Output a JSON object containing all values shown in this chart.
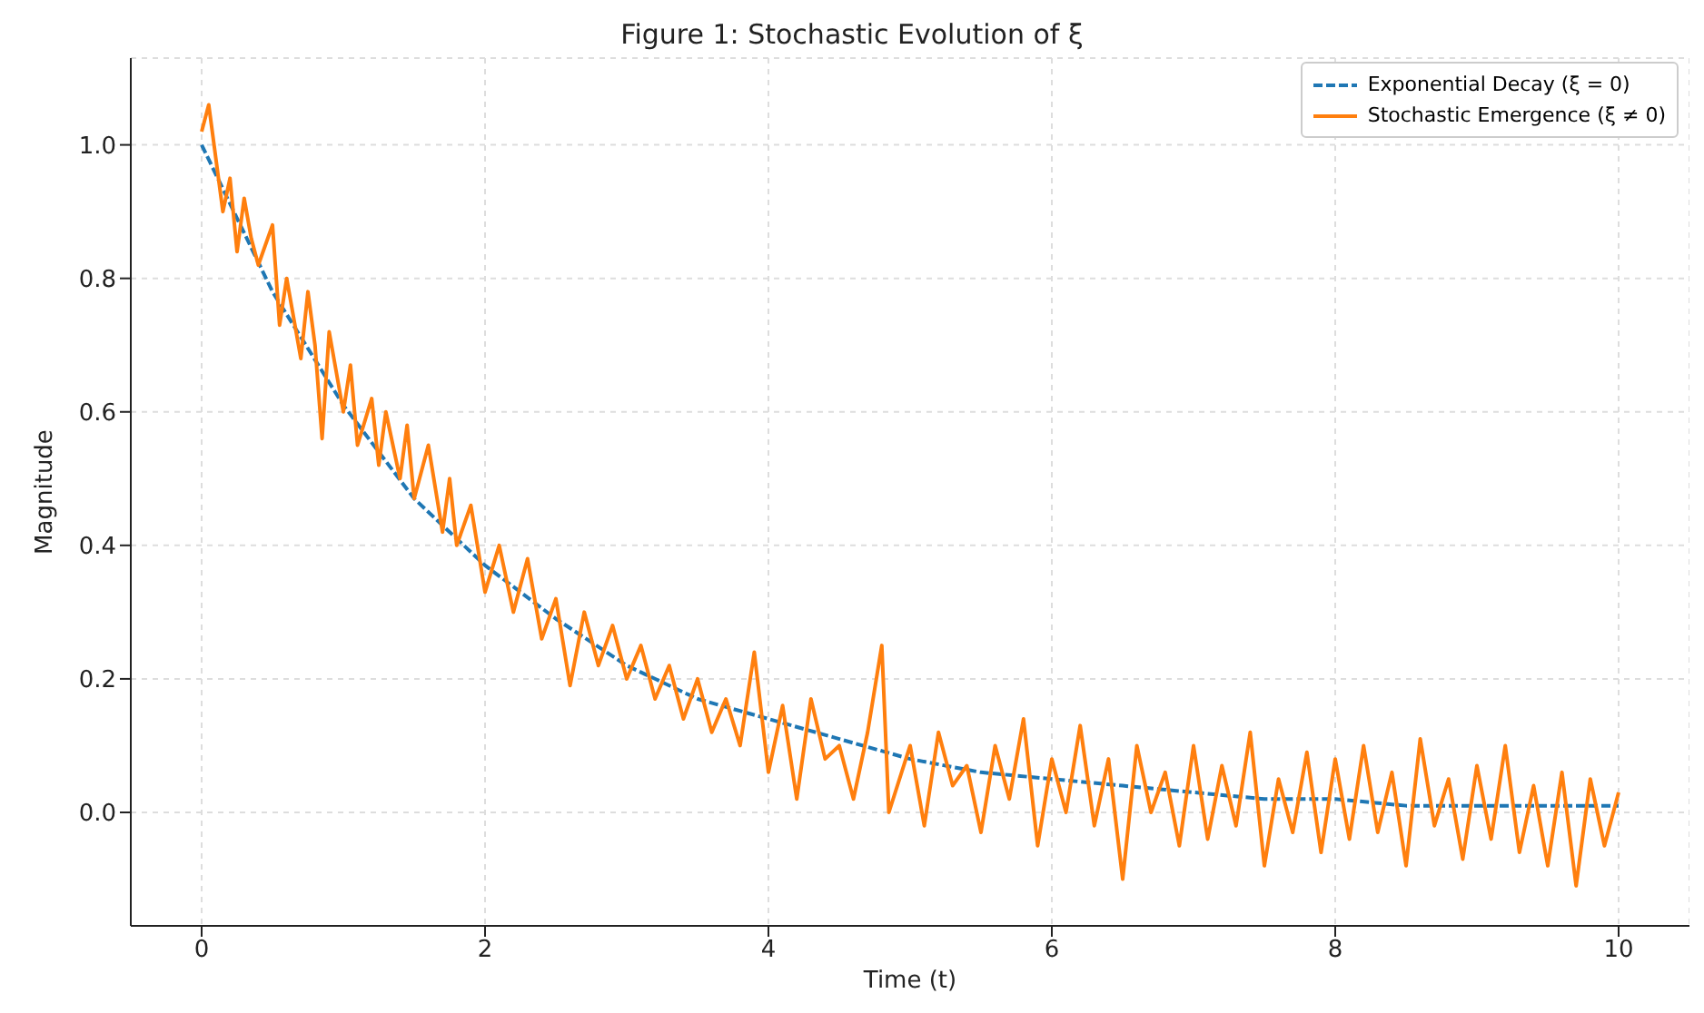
{
  "chart_data": {
    "type": "line",
    "title": "Figure 1: Stochastic Evolution of ξ",
    "xlabel": "Time (t)",
    "ylabel": "Magnitude",
    "xlim": [
      -0.5,
      10.5
    ],
    "xticks": [
      0,
      2,
      4,
      6,
      8,
      10
    ],
    "ylim": [
      -0.17,
      1.13
    ],
    "yticks": [
      {
        "value": 0,
        "label": "0.0"
      },
      {
        "value": 0.2,
        "label": "0.2"
      },
      {
        "value": 0.4,
        "label": "0.4"
      },
      {
        "value": 0.6,
        "label": "0.6"
      },
      {
        "value": 0.8,
        "label": "0.8"
      },
      {
        "value": 1,
        "label": "1.0"
      }
    ],
    "grid": true,
    "legend": "top right",
    "marker": "none",
    "series": [
      {
        "name": "Exponential Decay (ξ = 0)",
        "color": "#1f77b4",
        "line_style": "dashed",
        "x": [
          0,
          0.5,
          1,
          1.5,
          2,
          2.5,
          3,
          3.5,
          4,
          4.5,
          5,
          5.5,
          6,
          6.5,
          7,
          7.5,
          8,
          8.5,
          9,
          9.5,
          10
        ],
        "values": [
          1,
          0.78,
          0.61,
          0.47,
          0.37,
          0.29,
          0.22,
          0.17,
          0.14,
          0.11,
          0.08,
          0.06,
          0.05,
          0.04,
          0.03,
          0.02,
          0.02,
          0.01,
          0.01,
          0.01,
          0.01
        ]
      },
      {
        "name": "Stochastic Emergence (ξ ≠ 0)",
        "color": "#ff7f0e",
        "line_style": "solid",
        "x": [
          0,
          0.05,
          0.1,
          0.15,
          0.2,
          0.25,
          0.3,
          0.35,
          0.4,
          0.5,
          0.55,
          0.6,
          0.7,
          0.75,
          0.8,
          0.85,
          0.9,
          1,
          1.05,
          1.1,
          1.2,
          1.25,
          1.3,
          1.4,
          1.45,
          1.5,
          1.6,
          1.7,
          1.75,
          1.8,
          1.9,
          2,
          2.1,
          2.2,
          2.3,
          2.4,
          2.5,
          2.6,
          2.7,
          2.8,
          2.9,
          3,
          3.1,
          3.2,
          3.3,
          3.4,
          3.5,
          3.6,
          3.7,
          3.8,
          3.9,
          4,
          4.1,
          4.2,
          4.3,
          4.4,
          4.5,
          4.6,
          4.7,
          4.8,
          4.85,
          5,
          5.1,
          5.2,
          5.3,
          5.4,
          5.5,
          5.6,
          5.7,
          5.8,
          5.9,
          6,
          6.1,
          6.2,
          6.3,
          6.4,
          6.5,
          6.6,
          6.7,
          6.8,
          6.9,
          7,
          7.1,
          7.2,
          7.3,
          7.4,
          7.5,
          7.6,
          7.7,
          7.8,
          7.9,
          8,
          8.1,
          8.2,
          8.3,
          8.4,
          8.5,
          8.6,
          8.7,
          8.8,
          8.9,
          9,
          9.1,
          9.2,
          9.3,
          9.4,
          9.5,
          9.6,
          9.7,
          9.8,
          9.9,
          10
        ],
        "values": [
          1.02,
          1.06,
          0.98,
          0.9,
          0.95,
          0.84,
          0.92,
          0.86,
          0.82,
          0.88,
          0.73,
          0.8,
          0.68,
          0.78,
          0.7,
          0.56,
          0.72,
          0.6,
          0.67,
          0.55,
          0.62,
          0.52,
          0.6,
          0.5,
          0.58,
          0.47,
          0.55,
          0.42,
          0.5,
          0.4,
          0.46,
          0.33,
          0.4,
          0.3,
          0.38,
          0.26,
          0.32,
          0.19,
          0.3,
          0.22,
          0.28,
          0.2,
          0.25,
          0.17,
          0.22,
          0.14,
          0.2,
          0.12,
          0.17,
          0.1,
          0.24,
          0.06,
          0.16,
          0.02,
          0.17,
          0.08,
          0.1,
          0.02,
          0.12,
          0.25,
          0,
          0.1,
          -0.02,
          0.12,
          0.04,
          0.07,
          -0.03,
          0.1,
          0.02,
          0.14,
          -0.05,
          0.08,
          0,
          0.13,
          -0.02,
          0.08,
          -0.1,
          0.1,
          0,
          0.06,
          -0.05,
          0.1,
          -0.04,
          0.07,
          -0.02,
          0.12,
          -0.08,
          0.05,
          -0.03,
          0.09,
          -0.06,
          0.08,
          -0.04,
          0.1,
          -0.03,
          0.06,
          -0.08,
          0.11,
          -0.02,
          0.05,
          -0.07,
          0.07,
          -0.04,
          0.1,
          -0.06,
          0.04,
          -0.08,
          0.06,
          -0.11,
          0.05,
          -0.05,
          0.03
        ]
      }
    ]
  }
}
